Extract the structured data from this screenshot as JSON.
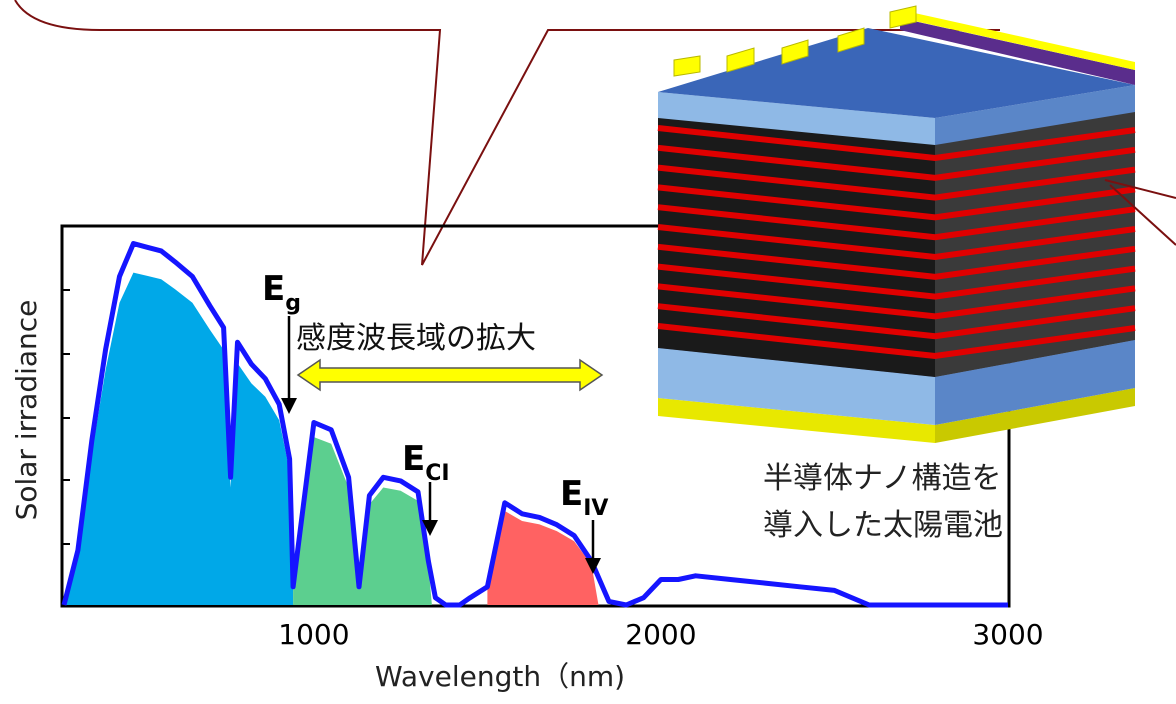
{
  "chart_data": {
    "type": "line",
    "title": "",
    "xlabel": "Wavelength（nm)",
    "ylabel": "Solar irradiance",
    "x_ticks": [
      1000,
      2000,
      3000
    ],
    "xlim": [
      280,
      3000
    ],
    "ylim": [
      0,
      1.0
    ],
    "grid": false,
    "series": [
      {
        "x": [
          280,
          320,
          360,
          400,
          440,
          480,
          520,
          560,
          600,
          650,
          700,
          740,
          760,
          780,
          820,
          860,
          900,
          930,
          940,
          960,
          1000,
          1050,
          1100,
          1130,
          1160,
          1200,
          1250,
          1300,
          1330,
          1350,
          1380,
          1420,
          1450,
          1500,
          1550,
          1600,
          1650,
          1700,
          1750,
          1800,
          1850,
          1900,
          1950,
          2000,
          2050,
          2100,
          2200,
          2300,
          2400,
          2500,
          2600,
          2800,
          3000
        ],
        "y": [
          0.0,
          0.15,
          0.45,
          0.7,
          0.9,
          0.99,
          0.98,
          0.97,
          0.94,
          0.9,
          0.82,
          0.76,
          0.35,
          0.72,
          0.66,
          0.62,
          0.55,
          0.4,
          0.05,
          0.2,
          0.5,
          0.48,
          0.35,
          0.05,
          0.3,
          0.35,
          0.34,
          0.31,
          0.12,
          0.02,
          0.0,
          0.0,
          0.02,
          0.05,
          0.28,
          0.25,
          0.24,
          0.22,
          0.19,
          0.12,
          0.01,
          0.0,
          0.02,
          0.07,
          0.07,
          0.08,
          0.07,
          0.06,
          0.05,
          0.04,
          0.0,
          0.0,
          0.0
        ]
      }
    ],
    "bands": [
      {
        "name": "E_g",
        "from": 280,
        "to": 940,
        "color": "#00a8e8"
      },
      {
        "name": "E_CI",
        "from": 940,
        "to": 1340,
        "color": "#5ccf8f"
      },
      {
        "name": "E_IV",
        "from": 1500,
        "to": 1820,
        "color": "#ff6262"
      }
    ],
    "line_color": "#1515ff"
  },
  "annotations": {
    "eg": {
      "main": "E",
      "sub": "g",
      "x": 940
    },
    "eci": {
      "main": "E",
      "sub": "CI",
      "x": 1340
    },
    "eiv": {
      "main": "E",
      "sub": "IV",
      "x": 1820
    },
    "expansion": "感度波長域の拡大"
  },
  "cell": {
    "caption_line1": "半導体ナノ構造を",
    "caption_line2": "導入した太陽電池",
    "layer_count": 11,
    "colors": {
      "contact": "#ffff00",
      "top_strip": "#5a2d8c",
      "substrate_front": "#8fb9e6",
      "substrate_top": "#3a66b8",
      "core": "#1a1a1a",
      "nano_layer": "#e00000"
    }
  },
  "callout_color": "#7a1010"
}
